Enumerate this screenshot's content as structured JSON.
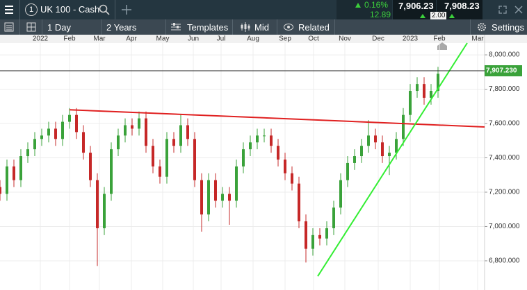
{
  "header": {
    "instrument_number": "1",
    "instrument": "UK 100 - Cash",
    "change_pct": "0.16%",
    "change": "12.89",
    "sell": "7,906.23",
    "buy": "7,908.23",
    "spread": "2.00"
  },
  "toolbar": {
    "interval": "1 Day",
    "range": "2 Years",
    "templates": "Templates",
    "price_type": "Mid",
    "related": "Related",
    "settings": "Settings"
  },
  "chart_data": {
    "type": "candlestick",
    "x": [
      0,
      1,
      2,
      3,
      4,
      5,
      6,
      7,
      8,
      9,
      10,
      11,
      12,
      13,
      14,
      15,
      16,
      17,
      18,
      19,
      20,
      21,
      22,
      23,
      24,
      25,
      26,
      27,
      28,
      29,
      30,
      31,
      32,
      33,
      34,
      35,
      36,
      37,
      38,
      39,
      40,
      41,
      42,
      43,
      44,
      45,
      46,
      47,
      48,
      49,
      50,
      51,
      52,
      53,
      54,
      55,
      56,
      57,
      58,
      59,
      60,
      61,
      62,
      63
    ],
    "open": [
      7230,
      7190,
      7350,
      7270,
      7410,
      7450,
      7510,
      7530,
      7570,
      7510,
      7610,
      7650,
      7550,
      7430,
      7270,
      6990,
      7190,
      7450,
      7530,
      7590,
      7570,
      7630,
      7470,
      7350,
      7290,
      7510,
      7470,
      7590,
      7510,
      7270,
      7070,
      7270,
      7150,
      7190,
      7150,
      7350,
      7450,
      7490,
      7530,
      7530,
      7470,
      7390,
      7310,
      7250,
      7030,
      6870,
      6950,
      6930,
      6990,
      7110,
      7270,
      7370,
      7410,
      7470,
      7530,
      7490,
      7410,
      7430,
      7510,
      7650,
      7790,
      7830,
      7750,
      7790
    ],
    "high": [
      7270,
      7390,
      7390,
      7450,
      7490,
      7550,
      7570,
      7610,
      7610,
      7650,
      7690,
      7690,
      7590,
      7470,
      7310,
      7230,
      7490,
      7570,
      7630,
      7630,
      7670,
      7670,
      7510,
      7390,
      7550,
      7550,
      7650,
      7630,
      7550,
      7310,
      7310,
      7310,
      7230,
      7230,
      7390,
      7490,
      7530,
      7570,
      7570,
      7570,
      7510,
      7430,
      7350,
      7290,
      7070,
      6990,
      6990,
      7030,
      7150,
      7310,
      7410,
      7450,
      7510,
      7620,
      7570,
      7530,
      7470,
      7550,
      7690,
      7830,
      7870,
      7870,
      7830,
      7930
    ],
    "low": [
      7150,
      7150,
      7230,
      7230,
      7370,
      7410,
      7470,
      7490,
      7470,
      7470,
      7570,
      7510,
      7390,
      7230,
      6770,
      6950,
      7150,
      7410,
      7490,
      7530,
      7530,
      7430,
      7310,
      7250,
      7250,
      7430,
      7430,
      7470,
      7230,
      6970,
      7030,
      7110,
      7110,
      7010,
      7110,
      7310,
      7410,
      7450,
      7490,
      7430,
      7350,
      7270,
      7210,
      6990,
      6790,
      6830,
      6890,
      6890,
      6950,
      7070,
      7230,
      7330,
      7370,
      7430,
      7450,
      7370,
      7300,
      7390,
      7470,
      7610,
      7750,
      7710,
      7710,
      7750
    ],
    "close": [
      7190,
      7350,
      7270,
      7410,
      7450,
      7510,
      7530,
      7570,
      7510,
      7610,
      7650,
      7550,
      7430,
      7270,
      6990,
      7190,
      7450,
      7530,
      7590,
      7570,
      7630,
      7470,
      7350,
      7290,
      7510,
      7470,
      7590,
      7510,
      7270,
      7070,
      7270,
      7150,
      7190,
      7150,
      7350,
      7450,
      7490,
      7530,
      7530,
      7470,
      7390,
      7310,
      7250,
      7030,
      6870,
      6950,
      6930,
      6990,
      7110,
      7270,
      7370,
      7410,
      7470,
      7530,
      7490,
      7410,
      7430,
      7510,
      7650,
      7790,
      7830,
      7750,
      7790,
      7890
    ],
    "up_color": "#3aa23a",
    "down_color": "#c62828",
    "xlim": [
      0,
      69.7
    ],
    "xticks": [
      {
        "value": 5.8,
        "label": "2022"
      },
      {
        "value": 10,
        "label": "Feb"
      },
      {
        "value": 14.3,
        "label": "Mar"
      },
      {
        "value": 18.9,
        "label": "Apr"
      },
      {
        "value": 23.4,
        "label": "May"
      },
      {
        "value": 27.8,
        "label": "Jun"
      },
      {
        "value": 31.8,
        "label": "Jul"
      },
      {
        "value": 36.4,
        "label": "Aug"
      },
      {
        "value": 41,
        "label": "Sep"
      },
      {
        "value": 45.1,
        "label": "Oct"
      },
      {
        "value": 49.6,
        "label": "Nov"
      },
      {
        "value": 54.4,
        "label": "Dec"
      },
      {
        "value": 59,
        "label": "2023"
      },
      {
        "value": 63.2,
        "label": "Feb"
      },
      {
        "value": 68.7,
        "label": "Mar"
      }
    ],
    "ylim": [
      6630,
      8069
    ],
    "yticks": [
      {
        "value": 6800,
        "label": "6,800.000"
      },
      {
        "value": 7000,
        "label": "7,000.000"
      },
      {
        "value": 7200,
        "label": "7,200.000"
      },
      {
        "value": 7400,
        "label": "7,400.000"
      },
      {
        "value": 7600,
        "label": "7,600.000"
      },
      {
        "value": 7800,
        "label": "7,800.000"
      },
      {
        "value": 8000,
        "label": "8,000.000"
      }
    ],
    "grid": true,
    "last_price": {
      "value": 7907.23,
      "label": "7,907.230"
    },
    "trendlines": [
      {
        "color": "#e02020",
        "x": [
          10,
          69.7
        ],
        "values": [
          7680,
          7580
        ]
      },
      {
        "color": "#33ee33",
        "x": [
          45.7,
          67.2
        ],
        "values": [
          6710,
          8069
        ]
      }
    ]
  }
}
